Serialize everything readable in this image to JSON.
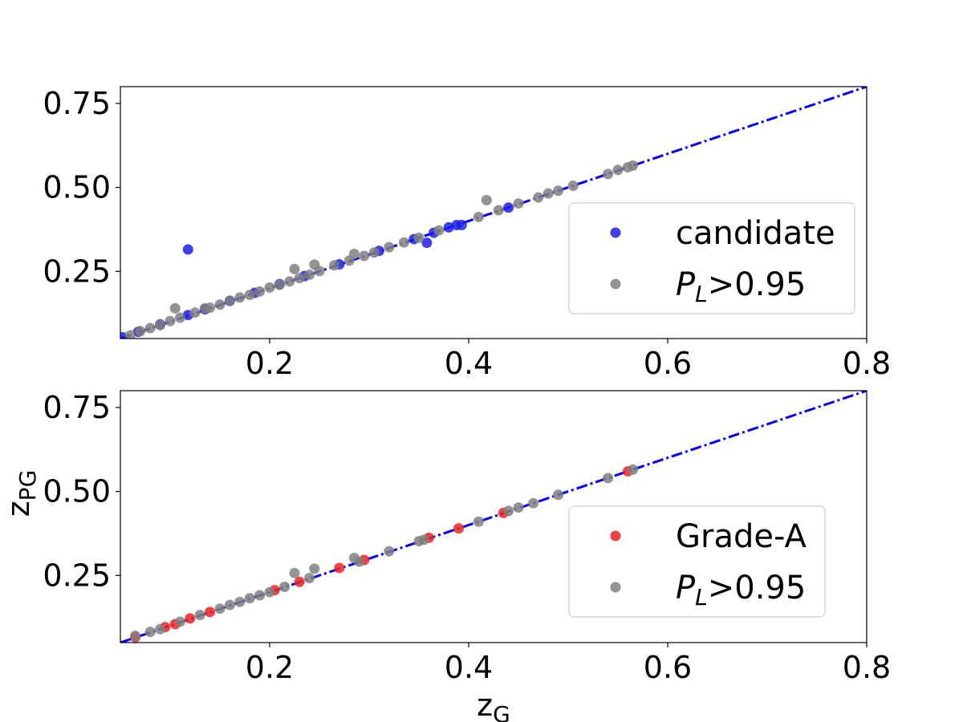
{
  "chart_data": [
    {
      "type": "scatter",
      "xlabel": "z",
      "xlabel_sub": "G",
      "ylabel": "",
      "ylabel_sub": "",
      "xlim": [
        0.05,
        0.8
      ],
      "ylim": [
        0.05,
        0.8
      ],
      "xticks": [
        0.2,
        0.4,
        0.6,
        0.8
      ],
      "xtick_labels": [
        "0.2",
        "0.4",
        "0.6",
        "0.8"
      ],
      "yticks": [
        0.25,
        0.5,
        0.75
      ],
      "ytick_labels": [
        "0.25",
        "0.50",
        "0.75"
      ],
      "reference_line": {
        "type": "y=x",
        "color": "#0000ff",
        "style": "dash-dot"
      },
      "legend": {
        "placement": "lower-right"
      },
      "series": [
        {
          "name": "candidate",
          "label_sub": "",
          "label_tail": "",
          "color": "#1f1fe8",
          "points": [
            {
              "x": 0.052,
              "y": 0.054
            },
            {
              "x": 0.068,
              "y": 0.07
            },
            {
              "x": 0.09,
              "y": 0.092
            },
            {
              "x": 0.118,
              "y": 0.12
            },
            {
              "x": 0.118,
              "y": 0.315
            },
            {
              "x": 0.135,
              "y": 0.137
            },
            {
              "x": 0.16,
              "y": 0.162
            },
            {
              "x": 0.185,
              "y": 0.186
            },
            {
              "x": 0.21,
              "y": 0.212
            },
            {
              "x": 0.235,
              "y": 0.236
            },
            {
              "x": 0.27,
              "y": 0.271
            },
            {
              "x": 0.31,
              "y": 0.311
            },
            {
              "x": 0.345,
              "y": 0.346
            },
            {
              "x": 0.358,
              "y": 0.335
            },
            {
              "x": 0.365,
              "y": 0.365
            },
            {
              "x": 0.38,
              "y": 0.381
            },
            {
              "x": 0.388,
              "y": 0.388
            },
            {
              "x": 0.393,
              "y": 0.388
            },
            {
              "x": 0.44,
              "y": 0.44
            }
          ]
        },
        {
          "name": "P",
          "label_sub": "L",
          "label_tail": ">0.95",
          "color": "#808080",
          "points": [
            {
              "x": 0.06,
              "y": 0.06
            },
            {
              "x": 0.07,
              "y": 0.072
            },
            {
              "x": 0.08,
              "y": 0.081
            },
            {
              "x": 0.09,
              "y": 0.09
            },
            {
              "x": 0.1,
              "y": 0.102
            },
            {
              "x": 0.105,
              "y": 0.14
            },
            {
              "x": 0.11,
              "y": 0.112
            },
            {
              "x": 0.125,
              "y": 0.127
            },
            {
              "x": 0.135,
              "y": 0.14
            },
            {
              "x": 0.14,
              "y": 0.142
            },
            {
              "x": 0.15,
              "y": 0.151
            },
            {
              "x": 0.16,
              "y": 0.163
            },
            {
              "x": 0.17,
              "y": 0.172
            },
            {
              "x": 0.18,
              "y": 0.18
            },
            {
              "x": 0.19,
              "y": 0.19
            },
            {
              "x": 0.2,
              "y": 0.202
            },
            {
              "x": 0.21,
              "y": 0.21
            },
            {
              "x": 0.22,
              "y": 0.22
            },
            {
              "x": 0.225,
              "y": 0.257
            },
            {
              "x": 0.23,
              "y": 0.23
            },
            {
              "x": 0.24,
              "y": 0.24
            },
            {
              "x": 0.245,
              "y": 0.27
            },
            {
              "x": 0.25,
              "y": 0.251
            },
            {
              "x": 0.265,
              "y": 0.268
            },
            {
              "x": 0.28,
              "y": 0.282
            },
            {
              "x": 0.285,
              "y": 0.302
            },
            {
              "x": 0.295,
              "y": 0.296
            },
            {
              "x": 0.305,
              "y": 0.306
            },
            {
              "x": 0.32,
              "y": 0.322
            },
            {
              "x": 0.335,
              "y": 0.336
            },
            {
              "x": 0.35,
              "y": 0.35
            },
            {
              "x": 0.37,
              "y": 0.372
            },
            {
              "x": 0.41,
              "y": 0.412
            },
            {
              "x": 0.418,
              "y": 0.462
            },
            {
              "x": 0.43,
              "y": 0.432
            },
            {
              "x": 0.45,
              "y": 0.452
            },
            {
              "x": 0.47,
              "y": 0.47
            },
            {
              "x": 0.48,
              "y": 0.482
            },
            {
              "x": 0.49,
              "y": 0.49
            },
            {
              "x": 0.505,
              "y": 0.505
            },
            {
              "x": 0.54,
              "y": 0.54
            },
            {
              "x": 0.55,
              "y": 0.552
            },
            {
              "x": 0.56,
              "y": 0.56
            },
            {
              "x": 0.565,
              "y": 0.565
            }
          ]
        }
      ]
    },
    {
      "type": "scatter",
      "xlabel": "z",
      "xlabel_sub": "G",
      "ylabel": "z",
      "ylabel_sub": "PG",
      "xlim": [
        0.05,
        0.8
      ],
      "ylim": [
        0.05,
        0.8
      ],
      "xticks": [
        0.2,
        0.4,
        0.6,
        0.8
      ],
      "xtick_labels": [
        "0.2",
        "0.4",
        "0.6",
        "0.8"
      ],
      "yticks": [
        0.25,
        0.5,
        0.75
      ],
      "ytick_labels": [
        "0.25",
        "0.50",
        "0.75"
      ],
      "reference_line": {
        "type": "y=x",
        "color": "#0000ff",
        "style": "dash-dot"
      },
      "legend": {
        "placement": "lower-right"
      },
      "series": [
        {
          "name": "Grade-A",
          "label_sub": "",
          "label_tail": "",
          "color": "#ee2222",
          "points": [
            {
              "x": 0.065,
              "y": 0.066
            },
            {
              "x": 0.095,
              "y": 0.096
            },
            {
              "x": 0.105,
              "y": 0.105
            },
            {
              "x": 0.12,
              "y": 0.122
            },
            {
              "x": 0.14,
              "y": 0.141
            },
            {
              "x": 0.205,
              "y": 0.206
            },
            {
              "x": 0.23,
              "y": 0.231
            },
            {
              "x": 0.27,
              "y": 0.272
            },
            {
              "x": 0.295,
              "y": 0.296
            },
            {
              "x": 0.36,
              "y": 0.362
            },
            {
              "x": 0.39,
              "y": 0.39
            },
            {
              "x": 0.435,
              "y": 0.436
            },
            {
              "x": 0.56,
              "y": 0.56
            }
          ]
        },
        {
          "name": "P",
          "label_sub": "L",
          "label_tail": ">0.95",
          "color": "#808080",
          "points": [
            {
              "x": 0.065,
              "y": 0.07
            },
            {
              "x": 0.08,
              "y": 0.082
            },
            {
              "x": 0.09,
              "y": 0.09
            },
            {
              "x": 0.11,
              "y": 0.112
            },
            {
              "x": 0.13,
              "y": 0.132
            },
            {
              "x": 0.15,
              "y": 0.151
            },
            {
              "x": 0.16,
              "y": 0.162
            },
            {
              "x": 0.17,
              "y": 0.171
            },
            {
              "x": 0.18,
              "y": 0.182
            },
            {
              "x": 0.19,
              "y": 0.191
            },
            {
              "x": 0.2,
              "y": 0.2
            },
            {
              "x": 0.215,
              "y": 0.216
            },
            {
              "x": 0.225,
              "y": 0.257
            },
            {
              "x": 0.24,
              "y": 0.242
            },
            {
              "x": 0.245,
              "y": 0.27
            },
            {
              "x": 0.285,
              "y": 0.302
            },
            {
              "x": 0.29,
              "y": 0.291
            },
            {
              "x": 0.32,
              "y": 0.322
            },
            {
              "x": 0.35,
              "y": 0.352
            },
            {
              "x": 0.355,
              "y": 0.356
            },
            {
              "x": 0.41,
              "y": 0.41
            },
            {
              "x": 0.44,
              "y": 0.442
            },
            {
              "x": 0.45,
              "y": 0.452
            },
            {
              "x": 0.465,
              "y": 0.465
            },
            {
              "x": 0.49,
              "y": 0.49
            },
            {
              "x": 0.54,
              "y": 0.54
            },
            {
              "x": 0.565,
              "y": 0.565
            }
          ]
        }
      ]
    }
  ]
}
